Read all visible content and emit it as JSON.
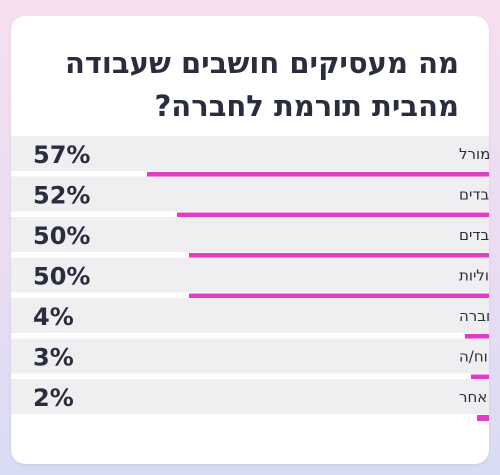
{
  "colors": {
    "bar": "#e23bc4",
    "stripe": "#efeff1",
    "text": "#2a2d3e",
    "card": "#ffffff"
  },
  "chart_data": {
    "type": "bar",
    "orientation": "horizontal",
    "title": "מה מעסיקים חושבים שעבודה מהבית תורמת לחברה?",
    "categories": [
      "העלאת המורל",
      "מפחית תחלופת עובדים",
      "מפחית היעדרויות של עובדים",
      "חיסכון בעלויות תפעוליות",
      "לא נצפו תועלות לחברה",
      "לא בטוח/ה",
      "אחר"
    ],
    "values": [
      57,
      52,
      50,
      50,
      4,
      3,
      2
    ],
    "value_labels": [
      "57%",
      "52%",
      "50%",
      "50%",
      "4%",
      "3%",
      "2%"
    ],
    "unit": "%",
    "xlim": [
      0,
      100
    ]
  }
}
